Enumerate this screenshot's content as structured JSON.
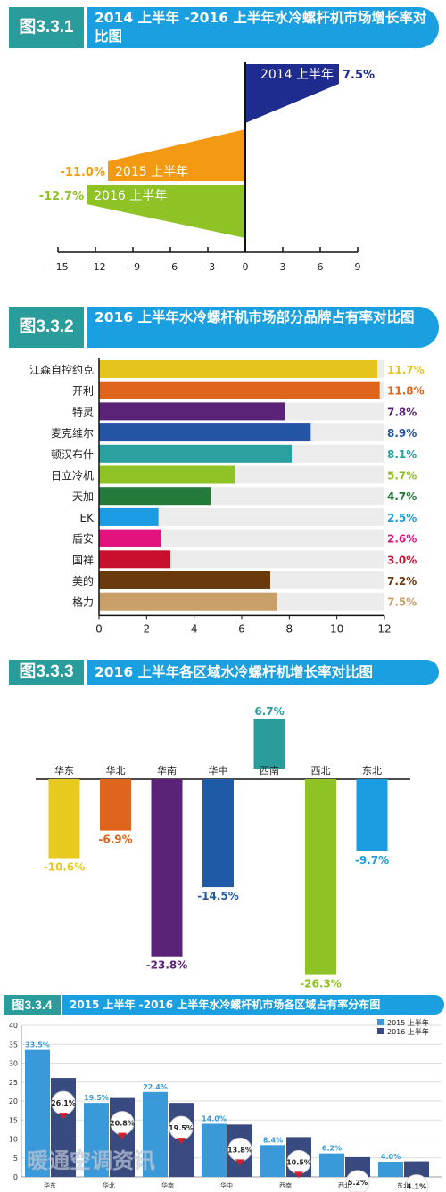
{
  "colors": {
    "header_num_bg": "#2a9c9c",
    "header_title_bg": "#1a9fe0",
    "bar_track": "#ececec"
  },
  "fig1": {
    "number": "图3.3.1",
    "title": "2014 上半年 -2016 上半年水冷螺杆机市场增长率对比图",
    "chart_data": {
      "type": "bar",
      "orientation": "horizontal",
      "categories": [
        "2014 上半年",
        "2015 上半年",
        "2016 上半年"
      ],
      "values": [
        7.5,
        -11.0,
        -12.7
      ],
      "value_labels": [
        "7.5%",
        "-11.0%",
        "-12.7%"
      ],
      "colors": [
        "#1f2c8f",
        "#f39a12",
        "#8ec225"
      ],
      "xlim": [
        -15,
        9
      ],
      "xticks": [
        -15,
        -12,
        -9,
        -6,
        -3,
        0,
        3,
        6,
        9
      ],
      "xtick_labels": [
        "−15",
        "−12",
        "−9",
        "−6",
        "−3",
        "0",
        "3",
        "6",
        "9"
      ]
    }
  },
  "fig2": {
    "number": "图3.3.2",
    "title": "2016 上半年水冷螺杆机市场部分品牌占有率对比图",
    "chart_data": {
      "type": "bar",
      "orientation": "horizontal",
      "categories": [
        "江森自控约克",
        "开利",
        "特灵",
        "麦克维尔",
        "顿汉布什",
        "日立冷机",
        "天加",
        "EK",
        "盾安",
        "国祥",
        "美的",
        "格力"
      ],
      "values": [
        11.7,
        11.8,
        7.8,
        8.9,
        8.1,
        5.7,
        4.7,
        2.5,
        2.6,
        3.0,
        7.2,
        7.5
      ],
      "value_labels": [
        "11.7%",
        "11.8%",
        "7.8%",
        "8.9%",
        "8.1%",
        "5.7%",
        "4.7%",
        "2.5%",
        "2.6%",
        "3.0%",
        "7.2%",
        "7.5%"
      ],
      "colors": [
        "#e6c41e",
        "#e0651c",
        "#5a2378",
        "#2455a4",
        "#2aa0a0",
        "#8ec225",
        "#237a3a",
        "#1b9be2",
        "#e3137e",
        "#c8102e",
        "#6b3a0c",
        "#c9a06a"
      ],
      "xlim": [
        0,
        12
      ],
      "xticks": [
        0,
        2,
        4,
        6,
        8,
        10,
        12
      ]
    }
  },
  "fig3": {
    "number": "图3.3.3",
    "title": "2016 上半年各区域水冷螺杆机增长率对比图",
    "chart_data": {
      "type": "bar",
      "categories": [
        "华东",
        "华北",
        "华南",
        "华中",
        "西南",
        "西北",
        "东北"
      ],
      "values": [
        -10.6,
        -6.9,
        -23.8,
        -14.5,
        6.7,
        -26.3,
        -9.7
      ],
      "value_labels": [
        "-10.6%",
        "-6.9%",
        "-23.8%",
        "-14.5%",
        "6.7%",
        "-26.3%",
        "-9.7%"
      ],
      "colors": [
        "#e8c91e",
        "#e0651c",
        "#5a2378",
        "#1f5aa6",
        "#2a9c9c",
        "#8ec225",
        "#1b9be2"
      ]
    }
  },
  "fig4": {
    "number": "图3.3.4",
    "title": "2015 上半年 -2016 上半年水冷螺杆机市场各区域占有率分布图",
    "chart_data": {
      "type": "bar",
      "categories": [
        "华东",
        "华北",
        "华南",
        "华中",
        "西南",
        "西北",
        "东北"
      ],
      "series": [
        {
          "name": "2015 上半年",
          "color": "#3a9ad9",
          "values": [
            33.5,
            19.5,
            22.4,
            14.0,
            8.4,
            6.2,
            4.0
          ],
          "labels": [
            "33.5%",
            "19.5%",
            "22.4%",
            "14.0%",
            "8.4%",
            "6.2%",
            "4.0%"
          ]
        },
        {
          "name": "2016 上半年",
          "color": "#394a80",
          "values": [
            26.1,
            20.8,
            19.5,
            13.8,
            10.5,
            5.2,
            4.1
          ],
          "labels": [
            "26.1%",
            "20.8%",
            "19.5%",
            "13.8%",
            "10.5%",
            "5.2%",
            "4.1%"
          ]
        }
      ],
      "ylim": [
        0,
        40
      ],
      "yticks": [
        0,
        5,
        10,
        15,
        20,
        25,
        30,
        35,
        40
      ],
      "legend": "top-right"
    },
    "watermark": "暖通空调资讯"
  }
}
